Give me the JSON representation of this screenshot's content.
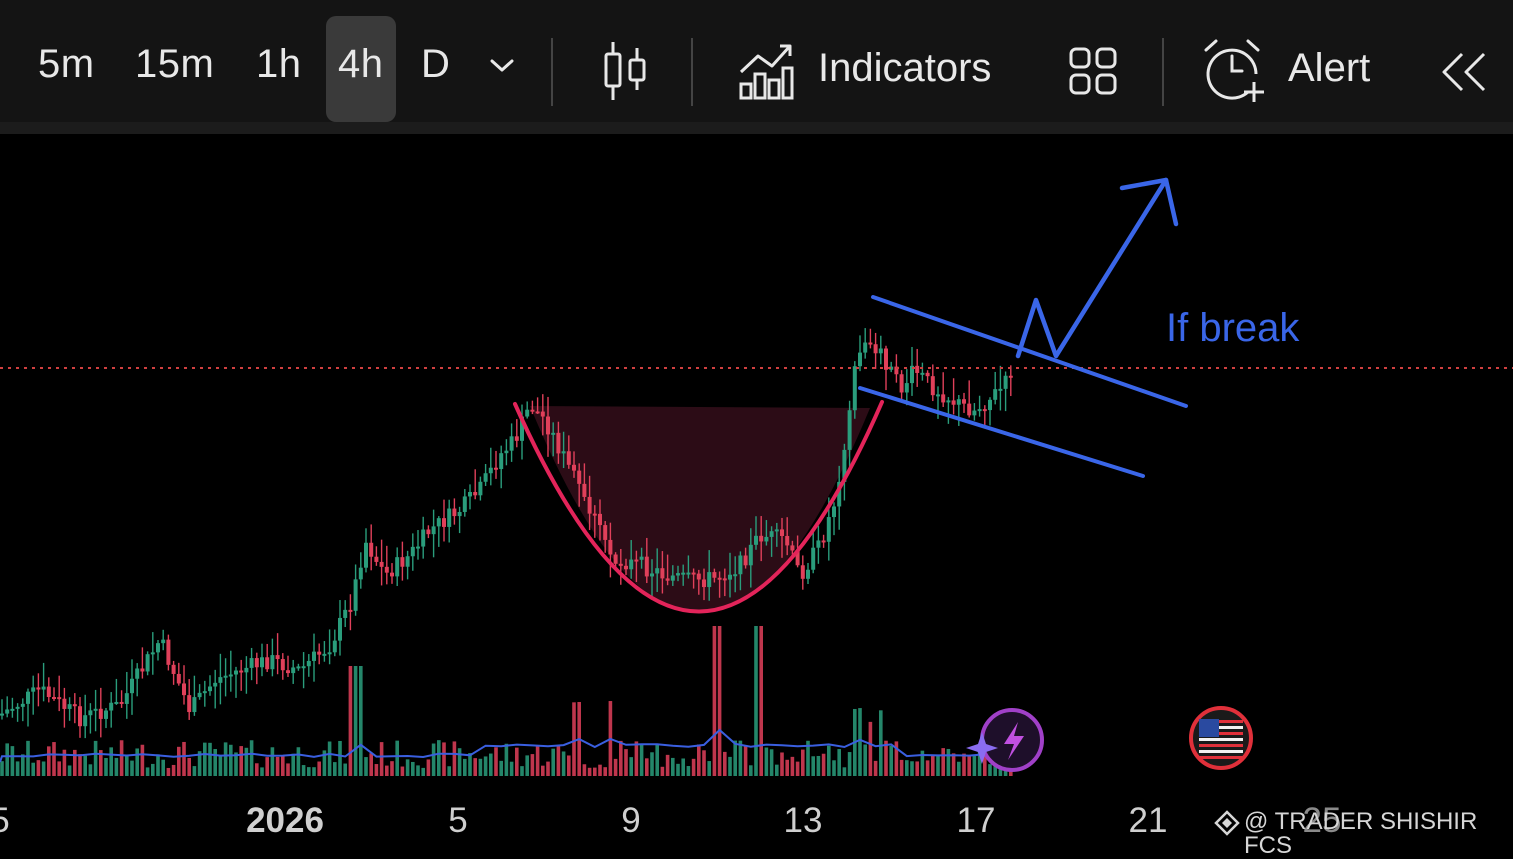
{
  "toolbar": {
    "timeframes": [
      "5m",
      "15m",
      "1h",
      "4h",
      "D"
    ],
    "active_timeframe": "4h",
    "indicators_label": "Indicators",
    "alert_label": "Alert"
  },
  "icons": {
    "timeframe_dropdown": "chevron-down-icon",
    "chart_type": "candlestick-icon",
    "indicators": "indicators-chart-icon",
    "layout": "grid-layout-icon",
    "alert": "alarm-clock-plus-icon",
    "collapse": "double-chevron-left-icon",
    "ai_assistant": "lightning-sparkle-icon",
    "region": "us-flag-icon"
  },
  "chart_data": {
    "type": "candlestick",
    "x_ticks": [
      "5",
      "2026",
      "5",
      "9",
      "13",
      "17",
      "21",
      "25"
    ],
    "annotation_text": "If break",
    "watermark": "@ TRADER SHISHIR FCS",
    "pattern": "cup-and-handle with descending channel and breakout arrow",
    "colors": {
      "up": "#2a9d7c",
      "down": "#e0405a",
      "cup_curve": "#e3245a",
      "cup_fill": "#2e0d17",
      "channel_lines": "#3a66e8",
      "volume_ma": "#3a5fe0",
      "price_line": "#d04040"
    }
  }
}
